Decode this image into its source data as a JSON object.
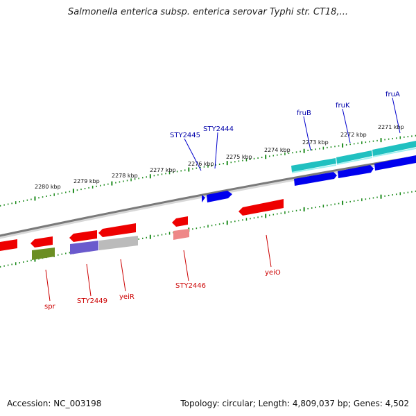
{
  "title": "Salmonella enterica subsp. enterica serovar Typhi str. CT18,...",
  "accession_label": "Accession: NC_003198",
  "summary_label": "Topology: circular; Length: 4,809,037 bp; Genes: 4,502",
  "colors": {
    "backbone": "#7a7a7a",
    "tick_marks": "#1a8a1a",
    "forward_cds": "#0000ee",
    "forward_rrna": "#20c0c0",
    "reverse_cds": "#ee0000",
    "reverse_pseudo": "#ee8888",
    "reverse_gray": "#bbbbbb",
    "reverse_purple": "#6a5acd",
    "reverse_olive": "#6b8e23",
    "forward_label": "#0000aa",
    "reverse_label": "#cc0000"
  },
  "ticks": [
    {
      "label": "2280 kbp"
    },
    {
      "label": "2279 kbp"
    },
    {
      "label": "2278 kbp"
    },
    {
      "label": "2277 kbp"
    },
    {
      "label": "2276 kbp"
    },
    {
      "label": "2275 kbp"
    },
    {
      "label": "2274 kbp"
    },
    {
      "label": "2273 kbp"
    },
    {
      "label": "2272 kbp"
    },
    {
      "label": "2271 kbp"
    }
  ],
  "forward_labels": [
    {
      "name": "STY2445"
    },
    {
      "name": "STY2444"
    },
    {
      "name": "fruB"
    },
    {
      "name": "fruK"
    },
    {
      "name": "fruA"
    }
  ],
  "reverse_labels": [
    {
      "name": "spr"
    },
    {
      "name": "STY2449"
    },
    {
      "name": "yeiR"
    },
    {
      "name": "STY2446"
    },
    {
      "name": "yeiO"
    }
  ]
}
